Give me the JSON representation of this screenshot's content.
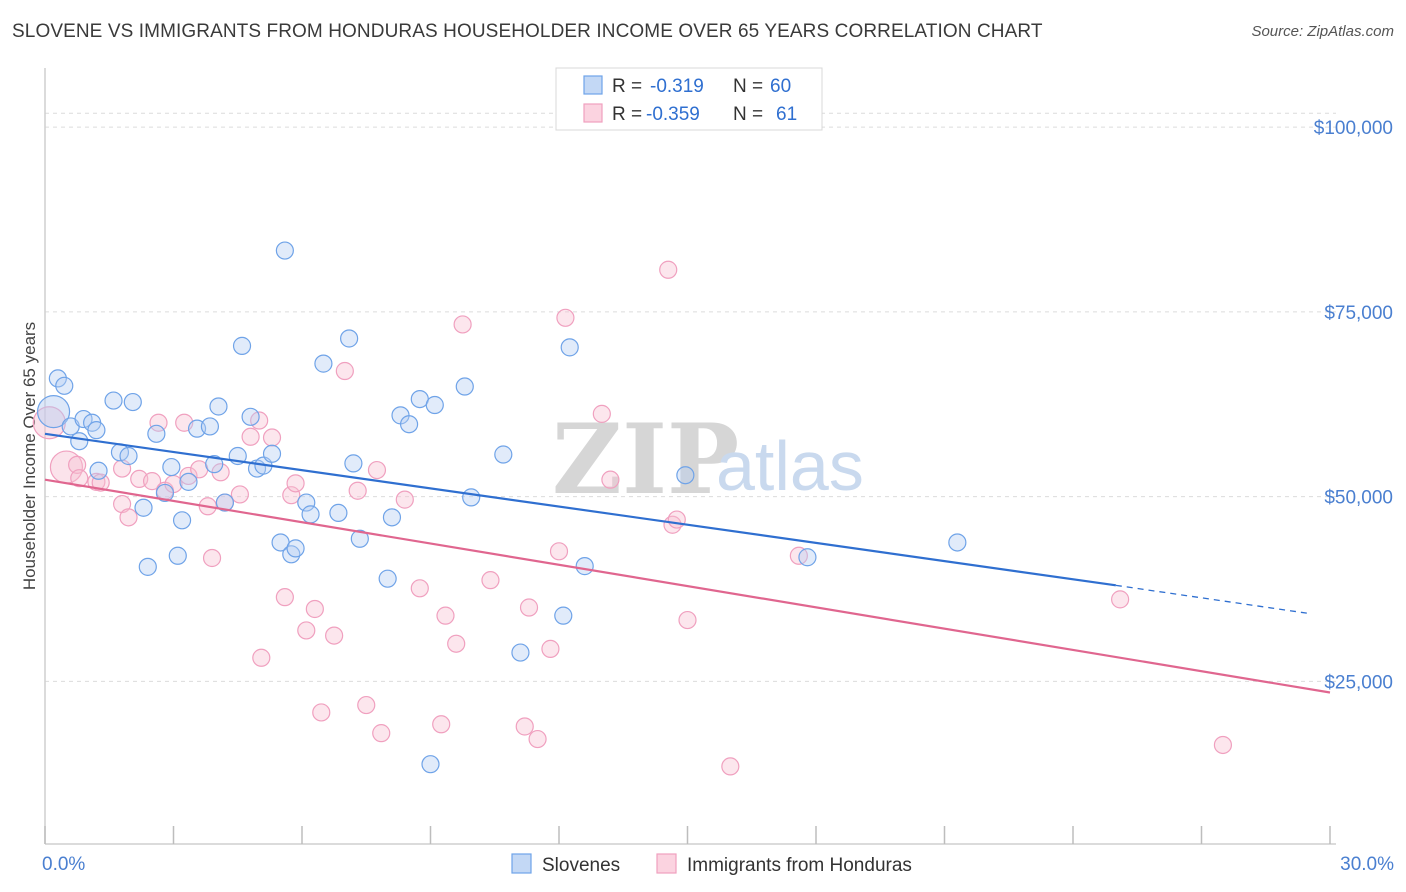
{
  "title": "SLOVENE VS IMMIGRANTS FROM HONDURAS HOUSEHOLDER INCOME OVER 65 YEARS CORRELATION CHART",
  "source": "Source: ZipAtlas.com",
  "watermark": {
    "zip": "ZIP",
    "atlas": "atlas"
  },
  "legend_top": {
    "rows": [
      {
        "r_label": "R =",
        "r_value": "-0.319",
        "n_label": "N =",
        "n_value": "60"
      },
      {
        "r_label": "R =",
        "r_value": "-0.359",
        "n_label": "N =",
        "n_value": "61"
      }
    ]
  },
  "legend_bottom": [
    "Slovenes",
    "Immigrants from Honduras"
  ],
  "chart_data": {
    "type": "scatter",
    "title": "SLOVENE VS IMMIGRANTS FROM HONDURAS HOUSEHOLDER INCOME OVER 65 YEARS CORRELATION CHART",
    "xlabel": "",
    "ylabel": "Householder Income Over 65 years",
    "xlim": [
      0,
      30
    ],
    "ylim": [
      3000,
      108000
    ],
    "x_tick_labels": {
      "min": "0.0%",
      "max": "30.0%"
    },
    "y_ticks": [
      {
        "value": 100000,
        "label": "$100,000"
      },
      {
        "value": 75000,
        "label": "$75,000"
      },
      {
        "value": 50000,
        "label": "$50,000"
      },
      {
        "value": 25000,
        "label": "$25,000"
      }
    ],
    "grid": "horizontal dashed",
    "colors": {
      "slovenes": "#6fa3e8",
      "honduras": "#f0a0bf",
      "slovenes_line": "#2f6fd0",
      "honduras_line": "#e0668f"
    },
    "series": [
      {
        "name": "Slovenes",
        "r": -0.319,
        "n": 60,
        "trend": {
          "x0": 0,
          "y0": 58500,
          "x1": 25,
          "y1": 38000,
          "dash_to_x": 29.5,
          "dash_to_y": 34200
        },
        "points": [
          [
            0.2,
            61500,
            "big"
          ],
          [
            0.3,
            66000
          ],
          [
            0.45,
            65000
          ],
          [
            0.6,
            59500
          ],
          [
            0.8,
            57500
          ],
          [
            0.9,
            60500
          ],
          [
            1.1,
            60000
          ],
          [
            1.2,
            59000
          ],
          [
            1.25,
            53500
          ],
          [
            1.6,
            63000
          ],
          [
            1.75,
            56000
          ],
          [
            1.95,
            55500
          ],
          [
            2.05,
            62800
          ],
          [
            2.3,
            48500
          ],
          [
            2.4,
            40500
          ],
          [
            2.6,
            58500
          ],
          [
            2.8,
            50500
          ],
          [
            2.95,
            54000
          ],
          [
            3.1,
            42000
          ],
          [
            3.2,
            46800
          ],
          [
            3.35,
            52000
          ],
          [
            3.55,
            59200
          ],
          [
            3.85,
            59500
          ],
          [
            3.95,
            54400
          ],
          [
            4.05,
            62200
          ],
          [
            4.2,
            49200
          ],
          [
            4.5,
            55500
          ],
          [
            4.6,
            70400
          ],
          [
            4.8,
            60800
          ],
          [
            4.95,
            53800
          ],
          [
            5.1,
            54200
          ],
          [
            5.3,
            55800
          ],
          [
            5.5,
            43800
          ],
          [
            5.6,
            83300
          ],
          [
            5.75,
            42200
          ],
          [
            5.85,
            43000
          ],
          [
            6.1,
            49200
          ],
          [
            6.2,
            47600
          ],
          [
            6.5,
            68000
          ],
          [
            6.85,
            47800
          ],
          [
            7.1,
            71400
          ],
          [
            7.2,
            54500
          ],
          [
            7.35,
            44300
          ],
          [
            8.0,
            38900
          ],
          [
            8.1,
            47200
          ],
          [
            8.3,
            61000
          ],
          [
            8.5,
            59800
          ],
          [
            8.75,
            63200
          ],
          [
            9.1,
            62400
          ],
          [
            9.8,
            64900
          ],
          [
            9.95,
            49900
          ],
          [
            10.7,
            55700
          ],
          [
            11.1,
            28900
          ],
          [
            12.1,
            33900
          ],
          [
            12.25,
            70200
          ],
          [
            12.6,
            40600
          ],
          [
            14.95,
            52900
          ],
          [
            17.8,
            41800
          ],
          [
            21.3,
            43800
          ],
          [
            9.0,
            13800
          ]
        ]
      },
      {
        "name": "Immigrants from Honduras",
        "r": -0.359,
        "n": 61,
        "trend": {
          "x0": 0,
          "y0": 52300,
          "x1": 30,
          "y1": 23500
        },
        "points": [
          [
            0.1,
            60000,
            "big"
          ],
          [
            0.5,
            54000,
            "big"
          ],
          [
            0.75,
            54300
          ],
          [
            0.8,
            52500
          ],
          [
            1.2,
            52000
          ],
          [
            1.3,
            51900
          ],
          [
            1.8,
            53800
          ],
          [
            1.8,
            49000
          ],
          [
            1.95,
            47200
          ],
          [
            2.2,
            52400
          ],
          [
            2.5,
            52100
          ],
          [
            2.65,
            60000
          ],
          [
            2.8,
            50800
          ],
          [
            3.0,
            51700
          ],
          [
            3.25,
            60000
          ],
          [
            3.35,
            52800
          ],
          [
            3.6,
            53700
          ],
          [
            3.8,
            48700
          ],
          [
            3.9,
            41700
          ],
          [
            4.1,
            53300
          ],
          [
            4.2,
            49200
          ],
          [
            4.55,
            50300
          ],
          [
            4.8,
            58100
          ],
          [
            5.0,
            60300
          ],
          [
            5.05,
            28200
          ],
          [
            5.3,
            58000
          ],
          [
            5.6,
            36400
          ],
          [
            5.75,
            50200
          ],
          [
            5.85,
            51800
          ],
          [
            6.1,
            31900
          ],
          [
            6.3,
            34800
          ],
          [
            6.45,
            20800
          ],
          [
            6.75,
            31200
          ],
          [
            7.0,
            67000
          ],
          [
            7.3,
            50800
          ],
          [
            7.5,
            21800
          ],
          [
            7.75,
            53600
          ],
          [
            7.85,
            18000
          ],
          [
            8.4,
            49600
          ],
          [
            8.75,
            37600
          ],
          [
            9.25,
            19200
          ],
          [
            9.35,
            33900
          ],
          [
            9.6,
            30100
          ],
          [
            9.75,
            73300
          ],
          [
            10.4,
            38700
          ],
          [
            11.2,
            18900
          ],
          [
            11.3,
            35000
          ],
          [
            11.5,
            17200
          ],
          [
            11.8,
            29400
          ],
          [
            12.0,
            42600
          ],
          [
            12.15,
            74200
          ],
          [
            13.0,
            61200
          ],
          [
            13.2,
            52300
          ],
          [
            14.55,
            80700
          ],
          [
            14.65,
            46200
          ],
          [
            14.75,
            46900
          ],
          [
            15.0,
            33300
          ],
          [
            16.0,
            13500
          ],
          [
            17.6,
            42000
          ],
          [
            25.1,
            36100
          ],
          [
            27.5,
            16400
          ]
        ]
      }
    ]
  }
}
